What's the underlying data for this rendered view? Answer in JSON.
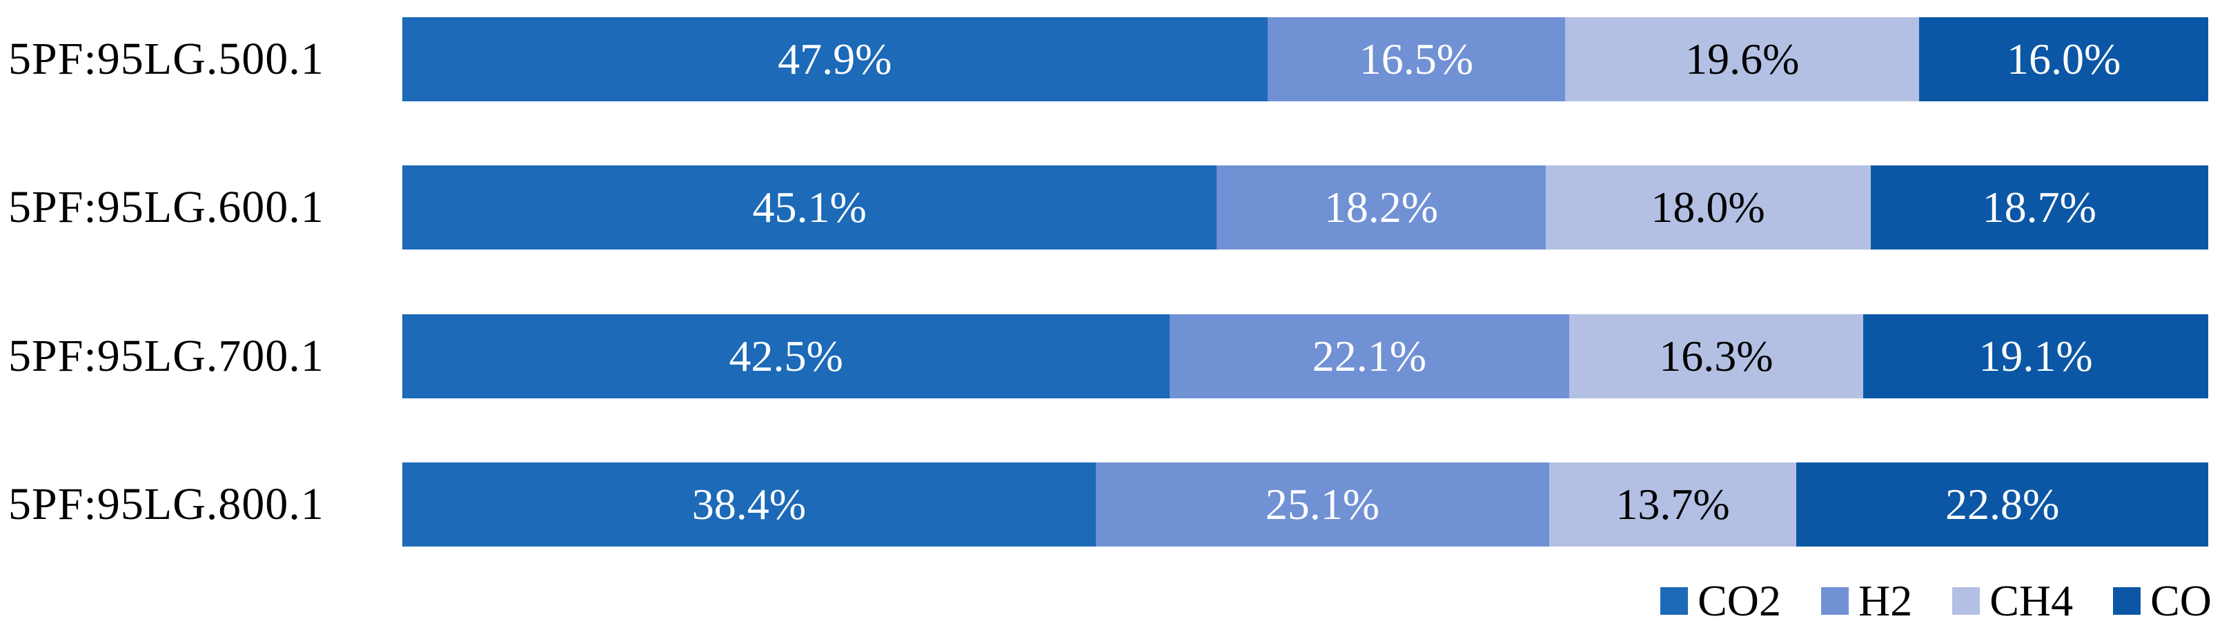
{
  "chart_data": {
    "type": "bar",
    "orientation": "horizontal",
    "stacked": true,
    "unit": "%",
    "title": "",
    "xlabel": "",
    "ylabel": "",
    "xlim": [
      0,
      100
    ],
    "grid": false,
    "legend_position": "bottom-right",
    "categories": [
      "5PF:95LG.500.1",
      "5PF:95LG.600.1",
      "5PF:95LG.700.1",
      "5PF:95LG.800.1"
    ],
    "series": [
      {
        "name": "CO2",
        "color": "#1C6AB8",
        "label_color": "#FFFFFF",
        "values": [
          47.9,
          45.1,
          42.5,
          38.4
        ]
      },
      {
        "name": "H2",
        "color": "#7191D5",
        "label_color": "#FFFFFF",
        "values": [
          16.5,
          18.2,
          22.1,
          25.1
        ]
      },
      {
        "name": "CH4",
        "color": "#B3C0E4",
        "label_color": "#000000",
        "values": [
          19.6,
          18.0,
          16.3,
          13.7
        ]
      },
      {
        "name": "CO",
        "color": "#0C57A5",
        "label_color": "#FFFFFF",
        "values": [
          16.0,
          18.7,
          19.1,
          22.8
        ]
      }
    ],
    "data_labels": [
      [
        "47.9%",
        "16.5%",
        "19.6%",
        "16.0%"
      ],
      [
        "45.1%",
        "18.2%",
        "18.0%",
        "18.7%"
      ],
      [
        "42.5%",
        "22.1%",
        "16.3%",
        "19.1%"
      ],
      [
        "38.4%",
        "25.1%",
        "13.7%",
        "22.8%"
      ]
    ]
  }
}
